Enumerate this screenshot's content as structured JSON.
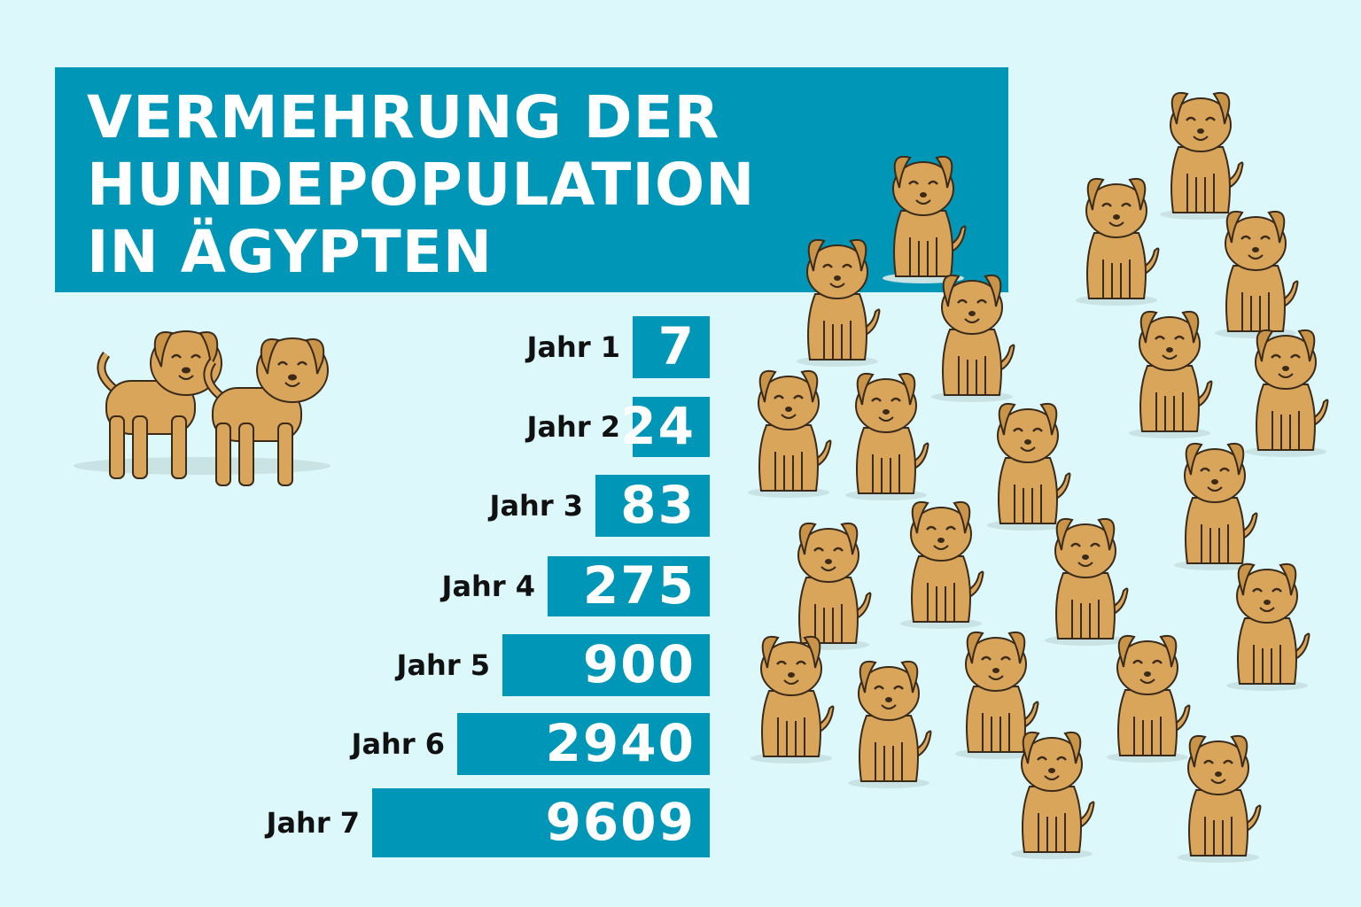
{
  "title": [
    "VERMEHRUNG DER",
    "HUNDEPOPULATION",
    "IN ÄGYPTEN"
  ],
  "rows": [
    {
      "label": "Jahr 1",
      "value": 7
    },
    {
      "label": "Jahr 2",
      "value": 24
    },
    {
      "label": "Jahr 3",
      "value": 83
    },
    {
      "label": "Jahr 4",
      "value": 275
    },
    {
      "label": "Jahr 5",
      "value": 900
    },
    {
      "label": "Jahr 6",
      "value": 2940
    },
    {
      "label": "Jahr 7",
      "value": 9609
    }
  ]
}
